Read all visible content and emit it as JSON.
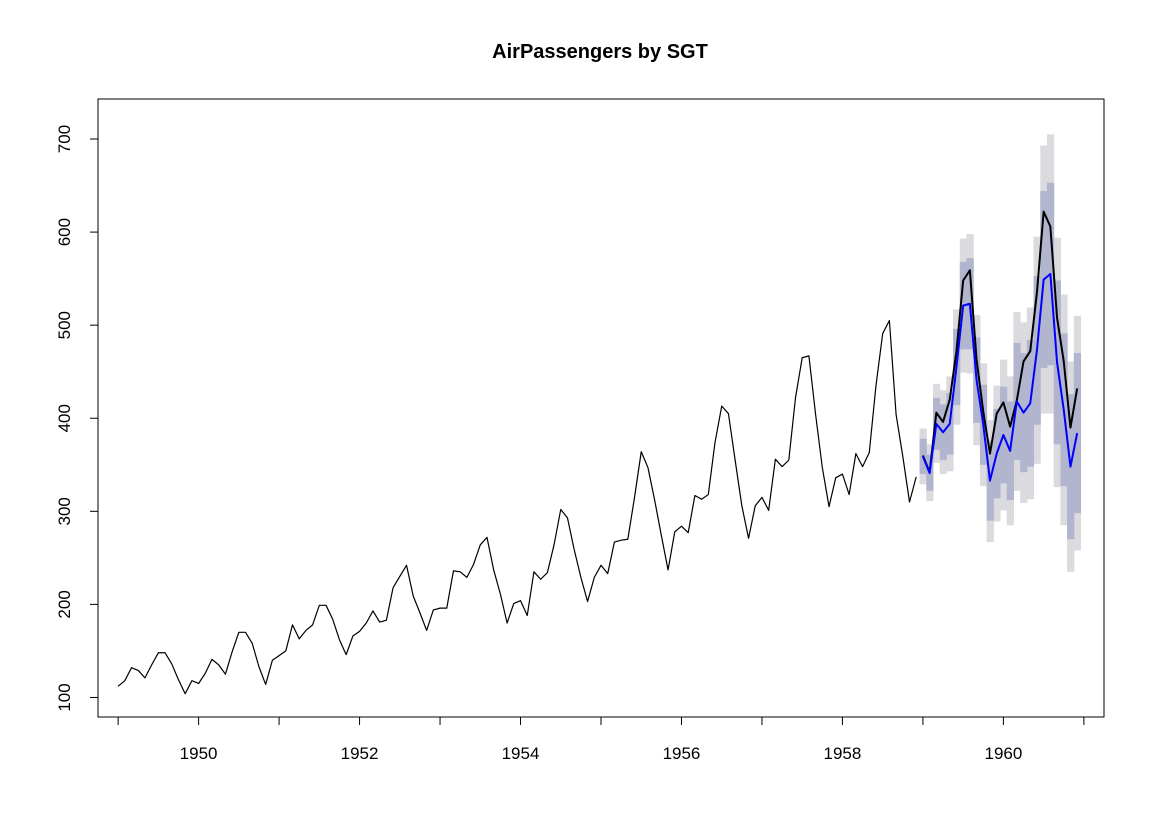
{
  "chart_data": {
    "type": "line",
    "title": "AirPassengers by SGT",
    "xlabel": "",
    "ylabel": "",
    "xlim": [
      1948.75,
      1961.25
    ],
    "ylim": [
      79,
      743
    ],
    "x_ticks": [
      1950,
      1952,
      1954,
      1956,
      1958,
      1960
    ],
    "y_ticks": [
      100,
      200,
      300,
      400,
      500,
      600,
      700
    ],
    "grid": false,
    "legend": "none",
    "colors": {
      "train": "#000000",
      "actual": "#000000",
      "forecast": "#0000ff",
      "band80": "#b1b5ce",
      "band95": "#dbdbdf"
    },
    "train": {
      "start": 1949.0,
      "step": 0.0833333,
      "values": [
        112,
        118,
        132,
        129,
        121,
        135,
        148,
        148,
        136,
        119,
        104,
        118,
        115,
        126,
        141,
        135,
        125,
        149,
        170,
        170,
        158,
        133,
        114,
        140,
        145,
        150,
        178,
        163,
        172,
        178,
        199,
        199,
        184,
        162,
        146,
        166,
        171,
        180,
        193,
        181,
        183,
        218,
        230,
        242,
        209,
        191,
        172,
        194,
        196,
        196,
        236,
        235,
        229,
        243,
        264,
        272,
        237,
        211,
        180,
        201,
        204,
        188,
        235,
        227,
        234,
        264,
        302,
        293,
        259,
        229,
        203,
        229,
        242,
        233,
        267,
        269,
        270,
        315,
        364,
        347,
        312,
        274,
        237,
        278,
        284,
        277,
        317,
        313,
        318,
        374,
        413,
        405,
        355,
        306,
        271,
        306,
        315,
        301,
        356,
        348,
        355,
        422,
        465,
        467,
        404,
        347,
        305,
        336,
        340,
        318,
        362,
        348,
        363,
        435,
        491,
        505,
        404,
        359,
        310,
        337
      ]
    },
    "actual": {
      "start": 1959.0,
      "step": 0.0833333,
      "values": [
        360,
        342,
        406,
        396,
        420,
        472,
        548,
        559,
        463,
        407,
        362,
        405,
        417,
        391,
        419,
        461,
        472,
        535,
        622,
        606,
        508,
        461,
        390,
        432
      ]
    },
    "forecast": {
      "start": 1959.0,
      "step": 0.0833333,
      "values": [
        359,
        341,
        394,
        385,
        394,
        455,
        521,
        523,
        441,
        393,
        333,
        362,
        382,
        365,
        418,
        406,
        416,
        473,
        549,
        555,
        460,
        409,
        348,
        384
      ],
      "lo80": [
        340,
        322,
        366,
        355,
        361,
        414,
        474,
        474,
        395,
        350,
        290,
        314,
        330,
        312,
        355,
        342,
        348,
        393,
        454,
        457,
        372,
        327,
        270,
        298
      ],
      "hi80": [
        378,
        361,
        422,
        415,
        427,
        496,
        568,
        572,
        487,
        436,
        376,
        410,
        434,
        418,
        481,
        470,
        484,
        553,
        644,
        653,
        548,
        491,
        426,
        470
      ],
      "lo95": [
        329,
        311,
        352,
        340,
        343,
        393,
        449,
        448,
        371,
        327,
        267,
        289,
        301,
        285,
        322,
        309,
        313,
        351,
        405,
        405,
        326,
        285,
        235,
        258
      ],
      "hi95": [
        389,
        372,
        437,
        430,
        445,
        517,
        593,
        598,
        511,
        459,
        398,
        435,
        463,
        445,
        514,
        503,
        519,
        595,
        693,
        705,
        594,
        533,
        461,
        510
      ]
    }
  }
}
